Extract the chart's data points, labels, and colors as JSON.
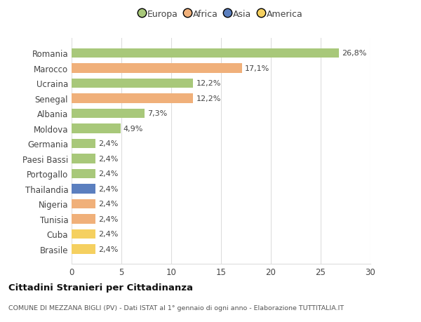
{
  "countries": [
    "Romania",
    "Marocco",
    "Ucraina",
    "Senegal",
    "Albania",
    "Moldova",
    "Germania",
    "Paesi Bassi",
    "Portogallo",
    "Thailandia",
    "Nigeria",
    "Tunisia",
    "Cuba",
    "Brasile"
  ],
  "values": [
    26.8,
    17.1,
    12.2,
    12.2,
    7.3,
    4.9,
    2.4,
    2.4,
    2.4,
    2.4,
    2.4,
    2.4,
    2.4,
    2.4
  ],
  "labels": [
    "26,8%",
    "17,1%",
    "12,2%",
    "12,2%",
    "7,3%",
    "4,9%",
    "2,4%",
    "2,4%",
    "2,4%",
    "2,4%",
    "2,4%",
    "2,4%",
    "2,4%",
    "2,4%"
  ],
  "continents": [
    "Europa",
    "Africa",
    "Europa",
    "Africa",
    "Europa",
    "Europa",
    "Europa",
    "Europa",
    "Europa",
    "Asia",
    "Africa",
    "Africa",
    "America",
    "America"
  ],
  "colors": {
    "Europa": "#a8c87a",
    "Africa": "#f0b07a",
    "Asia": "#5b7fbf",
    "America": "#f5d060"
  },
  "xlim": [
    0,
    30
  ],
  "xticks": [
    0,
    5,
    10,
    15,
    20,
    25,
    30
  ],
  "title": "Cittadini Stranieri per Cittadinanza",
  "subtitle": "COMUNE DI MEZZANA BIGLI (PV) - Dati ISTAT al 1° gennaio di ogni anno - Elaborazione TUTTITALIA.IT",
  "background_color": "#ffffff",
  "grid_color": "#dddddd",
  "legend_order": [
    "Europa",
    "Africa",
    "Asia",
    "America"
  ]
}
